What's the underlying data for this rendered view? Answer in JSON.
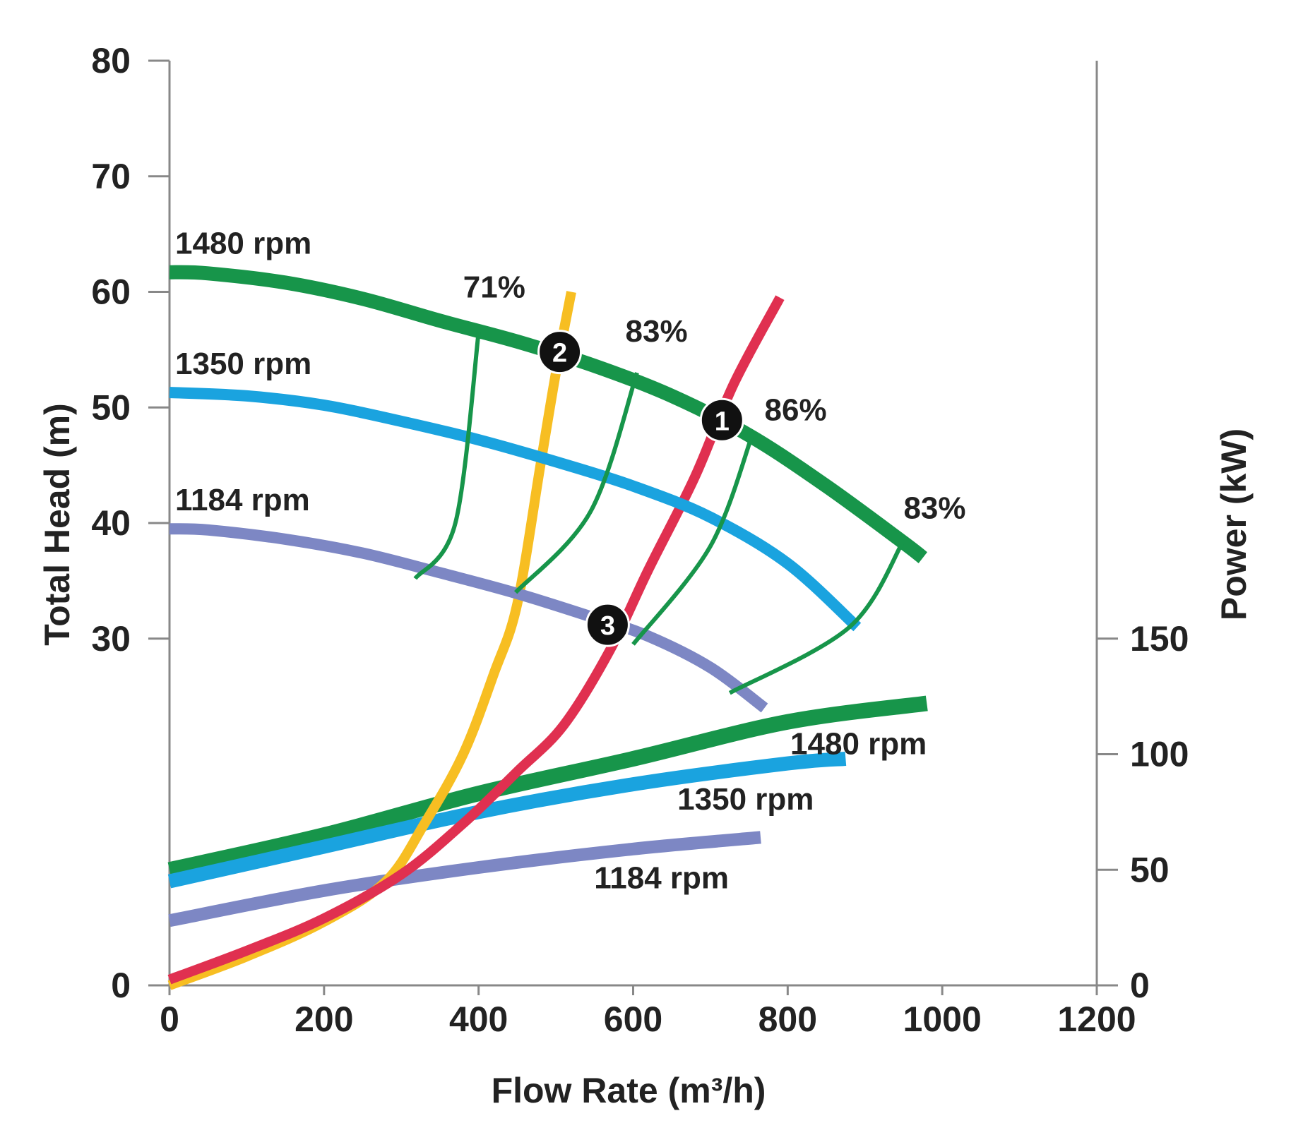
{
  "chart_data": {
    "type": "line",
    "xlabel": "Flow Rate (m³/h)",
    "ylabel_left": "Total Head (m)",
    "ylabel_right": "Power (kW)",
    "x_range": [
      0,
      1200
    ],
    "y_left_range": [
      0,
      80
    ],
    "y_right_range": [
      0,
      400
    ],
    "x_ticks": [
      "0",
      "200",
      "400",
      "600",
      "800",
      "1000",
      "1200"
    ],
    "x_tick_values": [
      0,
      200,
      400,
      600,
      800,
      1000,
      1200
    ],
    "y_left_ticks": [
      "0",
      "30",
      "40",
      "50",
      "60",
      "70",
      "80"
    ],
    "y_left_tick_values": [
      0,
      30,
      40,
      50,
      60,
      70,
      80
    ],
    "y_right_ticks": [
      "0",
      "50",
      "100",
      "150"
    ],
    "y_right_tick_values": [
      0,
      50,
      100,
      150
    ],
    "colors": {
      "rpm1480": "#17954a",
      "rpm1350": "#1aa3df",
      "rpm1184": "#7d87c4",
      "system_curve_a": "#f7be22",
      "system_curve_b": "#e03050",
      "efficiency": "#17954a",
      "marker": "#111111",
      "axis": "#888888"
    },
    "head_curves": [
      {
        "name": "1480 rpm",
        "label": "1480 rpm",
        "color_key": "rpm1480",
        "points": [
          [
            0,
            61.7
          ],
          [
            50,
            61.6
          ],
          [
            150,
            60.8
          ],
          [
            250,
            59.4
          ],
          [
            350,
            57.5
          ],
          [
            450,
            55.7
          ],
          [
            550,
            53.6
          ],
          [
            650,
            51.0
          ],
          [
            750,
            47.6
          ],
          [
            850,
            43.2
          ],
          [
            950,
            38.3
          ],
          [
            975,
            37.0
          ]
        ]
      },
      {
        "name": "1350 rpm",
        "label": "1350 rpm",
        "color_key": "rpm1350",
        "points": [
          [
            0,
            51.3
          ],
          [
            100,
            51.0
          ],
          [
            200,
            50.2
          ],
          [
            300,
            48.8
          ],
          [
            400,
            47.2
          ],
          [
            500,
            45.3
          ],
          [
            600,
            43.2
          ],
          [
            700,
            40.5
          ],
          [
            800,
            36.5
          ],
          [
            890,
            31.0
          ]
        ]
      },
      {
        "name": "1184 rpm",
        "label": "1184 rpm",
        "color_key": "rpm1184",
        "points": [
          [
            0,
            39.5
          ],
          [
            50,
            39.4
          ],
          [
            150,
            38.6
          ],
          [
            250,
            37.4
          ],
          [
            350,
            35.7
          ],
          [
            450,
            33.9
          ],
          [
            550,
            31.8
          ],
          [
            620,
            30.2
          ],
          [
            700,
            27.5
          ],
          [
            770,
            24.0
          ]
        ]
      }
    ],
    "power_curves": [
      {
        "name": "1480 rpm",
        "label": "1480 rpm",
        "color_key": "rpm1480",
        "points": [
          [
            0,
            50
          ],
          [
            200,
            65
          ],
          [
            400,
            83
          ],
          [
            600,
            98
          ],
          [
            800,
            114
          ],
          [
            980,
            122
          ]
        ]
      },
      {
        "name": "1350 rpm",
        "label": "1350 rpm",
        "color_key": "rpm1350",
        "points": [
          [
            0,
            45
          ],
          [
            200,
            60
          ],
          [
            400,
            75
          ],
          [
            600,
            87
          ],
          [
            800,
            96
          ],
          [
            875,
            98
          ]
        ]
      },
      {
        "name": "1184 rpm",
        "label": "1184 rpm",
        "color_key": "rpm1184",
        "points": [
          [
            0,
            28
          ],
          [
            200,
            41
          ],
          [
            400,
            51
          ],
          [
            600,
            59
          ],
          [
            765,
            64
          ]
        ]
      }
    ],
    "system_curves": [
      {
        "name": "system curve (yellow)",
        "color_key": "system_curve_a",
        "points": [
          [
            0,
            0
          ],
          [
            100,
            2.5
          ],
          [
            200,
            5.5
          ],
          [
            280,
            9
          ],
          [
            330,
            14
          ],
          [
            380,
            20
          ],
          [
            420,
            27
          ],
          [
            450,
            33
          ],
          [
            480,
            45
          ],
          [
            500,
            53
          ],
          [
            520,
            60
          ]
        ]
      },
      {
        "name": "system curve (red)",
        "color_key": "system_curve_b",
        "points": [
          [
            0,
            0.5
          ],
          [
            100,
            3
          ],
          [
            200,
            5.8
          ],
          [
            300,
            9.6
          ],
          [
            380,
            14
          ],
          [
            450,
            18.5
          ],
          [
            510,
            22.5
          ],
          [
            570,
            29
          ],
          [
            620,
            36
          ],
          [
            680,
            44
          ],
          [
            730,
            52
          ],
          [
            790,
            59.5
          ]
        ]
      }
    ],
    "efficiency_lines": [
      {
        "label": "71%",
        "points": [
          [
            400,
            56.5
          ],
          [
            370,
            40
          ],
          [
            318,
            35.2
          ]
        ]
      },
      {
        "label": "83%",
        "points": [
          [
            605,
            53
          ],
          [
            545,
            41
          ],
          [
            448,
            34
          ]
        ]
      },
      {
        "label": "86%",
        "points": [
          [
            755,
            47.8
          ],
          [
            700,
            38
          ],
          [
            600,
            29.5
          ]
        ]
      },
      {
        "label": "83%",
        "points": [
          [
            950,
            38.5
          ],
          [
            880,
            31
          ],
          [
            725,
            25.3
          ]
        ]
      }
    ],
    "efficiency_labels": [
      {
        "text": "71%",
        "x": 380,
        "y": 59.5
      },
      {
        "text": "83%",
        "x": 590,
        "y": 55.7
      },
      {
        "text": "86%",
        "x": 770,
        "y": 48.9
      },
      {
        "text": "83%",
        "x": 950,
        "y": 40.4
      }
    ],
    "operating_points": [
      {
        "label": "1",
        "x": 715,
        "y": 48.9
      },
      {
        "label": "2",
        "x": 505,
        "y": 54.8
      },
      {
        "label": "3",
        "x": 567,
        "y": 31.2
      }
    ]
  }
}
